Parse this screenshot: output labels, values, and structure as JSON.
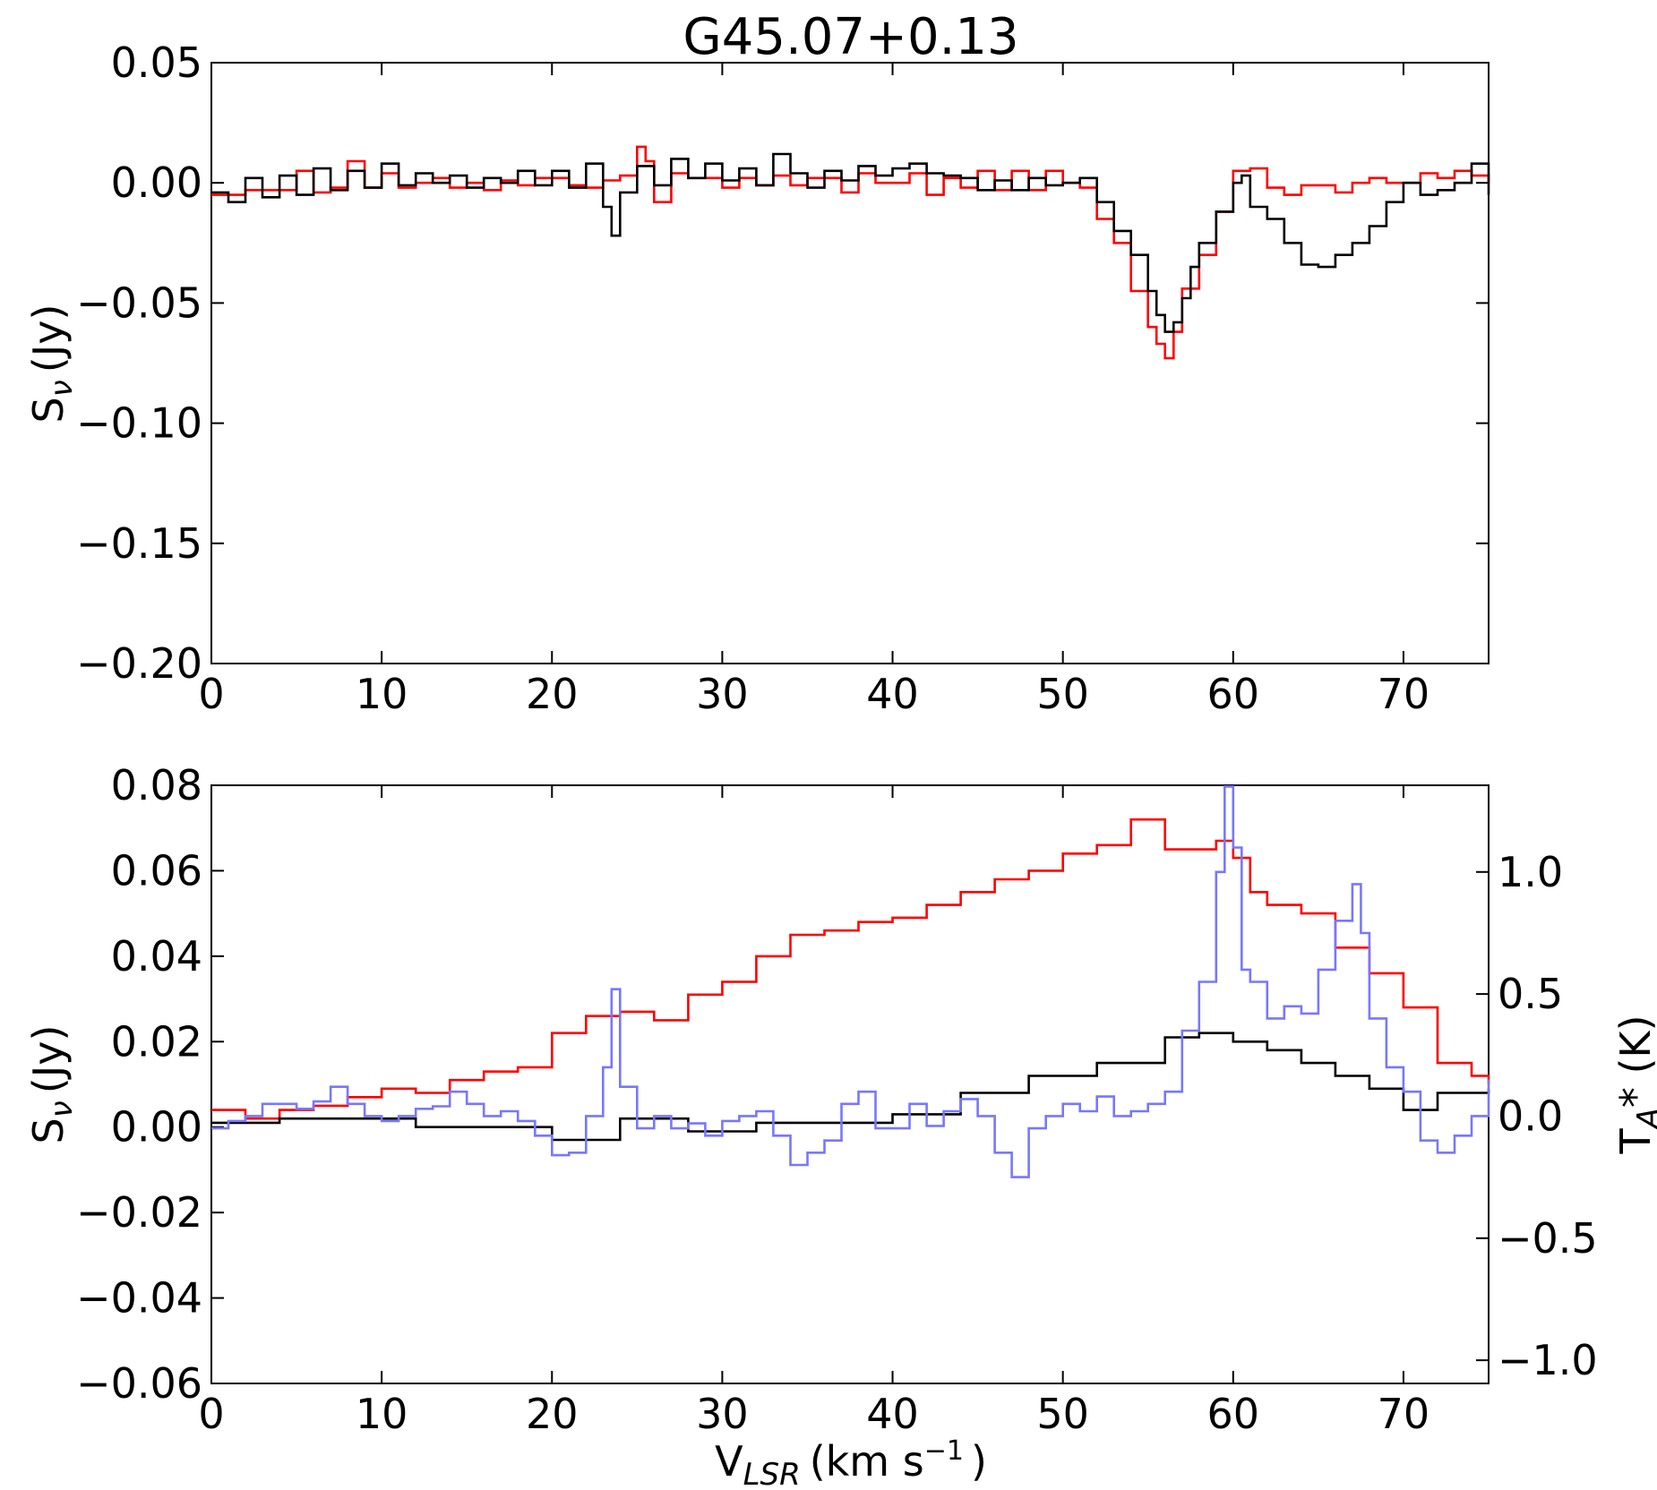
{
  "figure_title": "G45.07+0.13",
  "colors": {
    "red": "#ff0000",
    "black": "#000000",
    "blue": "#7777ff"
  },
  "chart_data": [
    {
      "type": "line",
      "title": "G45.07+0.13",
      "xlabel": "",
      "ylabel": {
        "base": "S",
        "sub": "ν",
        "rest": "(Jy)"
      },
      "xlim": [
        0,
        75
      ],
      "ylim": [
        -0.2,
        0.05
      ],
      "xticks": [
        0,
        10,
        20,
        30,
        40,
        50,
        60,
        70
      ],
      "xtick_labels": [
        "0",
        "10",
        "20",
        "30",
        "40",
        "50",
        "60",
        "70"
      ],
      "yticks": [
        0.05,
        0.0,
        -0.05,
        -0.1,
        -0.15,
        -0.2
      ],
      "ytick_labels": [
        "0.05",
        "0.00",
        "−0.05",
        "−0.10",
        "−0.15",
        "−0.20"
      ],
      "grid": false,
      "series": [
        {
          "color": "#ff0000",
          "step": true,
          "x": [
            0,
            2,
            4,
            5,
            6,
            7,
            8,
            9,
            10,
            11,
            12,
            13,
            14,
            15,
            16,
            17,
            18,
            19,
            20,
            21,
            22,
            23,
            24,
            25,
            25.5,
            26,
            27,
            28,
            29,
            30,
            31,
            32,
            33,
            34,
            35,
            36,
            37,
            38,
            39,
            40,
            41,
            42,
            43,
            44,
            45,
            46,
            47,
            48,
            49,
            50,
            51,
            52,
            53,
            54,
            55,
            55.5,
            56,
            56.5,
            57,
            58,
            59,
            60,
            61,
            62,
            63,
            64,
            65,
            66,
            67,
            68,
            69,
            70,
            71,
            72,
            73,
            74,
            75
          ],
          "y": [
            -0.005,
            -0.003,
            -0.003,
            0.005,
            -0.004,
            -0.002,
            0.009,
            -0.002,
            0.004,
            -0.002,
            0.0,
            0.002,
            -0.002,
            0.0,
            -0.003,
            0.001,
            -0.001,
            0.002,
            0.002,
            -0.001,
            -0.002,
            0.001,
            0.003,
            0.015,
            0.009,
            -0.008,
            0.004,
            0.002,
            0.002,
            -0.002,
            0.002,
            -0.001,
            0.003,
            -0.001,
            0.002,
            0.002,
            -0.004,
            0.004,
            0.0,
            0.0,
            0.004,
            -0.005,
            0.002,
            -0.002,
            0.005,
            -0.003,
            0.005,
            -0.003,
            0.005,
            0.0,
            -0.002,
            -0.015,
            -0.025,
            -0.045,
            -0.06,
            -0.067,
            -0.073,
            -0.062,
            -0.044,
            -0.03,
            -0.012,
            0.005,
            0.006,
            -0.002,
            -0.005,
            -0.001,
            -0.001,
            -0.004,
            0.0,
            0.002,
            0.0,
            0.0,
            0.004,
            0.002,
            0.005,
            0.003,
            0.0
          ]
        },
        {
          "color": "#000000",
          "step": true,
          "x": [
            0,
            1,
            2,
            3,
            4,
            5,
            6,
            7,
            8,
            9,
            10,
            11,
            12,
            13,
            14,
            15,
            16,
            17,
            18,
            19,
            20,
            21,
            22,
            23,
            23.5,
            24,
            25,
            26,
            27,
            28,
            29,
            30,
            31,
            32,
            33,
            34,
            35,
            36,
            37,
            38,
            39,
            40,
            41,
            42,
            43,
            44,
            45,
            46,
            47,
            48,
            49,
            50,
            51,
            52,
            53,
            54,
            55,
            55.5,
            56,
            56.5,
            57,
            57.5,
            58,
            59,
            60,
            60.5,
            61,
            62,
            63,
            64,
            65,
            66,
            67,
            68,
            69,
            70,
            71,
            72,
            73,
            74,
            75
          ],
          "y": [
            -0.004,
            -0.008,
            0.002,
            -0.006,
            0.003,
            -0.005,
            0.006,
            -0.003,
            0.005,
            -0.002,
            0.008,
            -0.001,
            0.004,
            0.0,
            0.003,
            -0.002,
            0.002,
            0.0,
            0.005,
            -0.001,
            0.005,
            -0.002,
            0.008,
            -0.01,
            -0.022,
            -0.004,
            0.007,
            -0.001,
            0.01,
            0.002,
            0.008,
            0.001,
            0.006,
            -0.001,
            0.012,
            0.004,
            -0.002,
            0.005,
            0.001,
            0.007,
            0.003,
            0.006,
            0.008,
            0.004,
            0.003,
            0.002,
            -0.003,
            0.001,
            -0.003,
            0.002,
            -0.001,
            0.0,
            0.002,
            -0.008,
            -0.02,
            -0.03,
            -0.045,
            -0.055,
            -0.062,
            -0.058,
            -0.048,
            -0.035,
            -0.025,
            -0.012,
            0.0,
            0.003,
            -0.01,
            -0.015,
            -0.025,
            -0.034,
            -0.035,
            -0.03,
            -0.025,
            -0.018,
            -0.008,
            0.0,
            -0.005,
            -0.003,
            0.0,
            0.008,
            -0.005
          ]
        }
      ]
    },
    {
      "type": "line",
      "xlabel": {
        "base": "V",
        "sub": "LSR",
        "rest": "(km s",
        "sup": "−1",
        "close": ")"
      },
      "ylabel": {
        "base": "S",
        "sub": "ν",
        "rest": "(Jy)"
      },
      "ylabel_right": {
        "base": "T",
        "sub": "A",
        "rest": "* (K)"
      },
      "xlim": [
        0,
        75
      ],
      "ylim": [
        -0.06,
        0.08
      ],
      "ylim_right": [
        -1.095,
        1.355
      ],
      "xticks": [
        0,
        10,
        20,
        30,
        40,
        50,
        60,
        70
      ],
      "xtick_labels": [
        "0",
        "10",
        "20",
        "30",
        "40",
        "50",
        "60",
        "70"
      ],
      "yticks": [
        0.08,
        0.06,
        0.04,
        0.02,
        0.0,
        -0.02,
        -0.04,
        -0.06
      ],
      "ytick_labels": [
        "0.08",
        "0.06",
        "0.04",
        "0.02",
        "0.00",
        "−0.02",
        "−0.04",
        "−0.06"
      ],
      "yticks_right": [
        1.0,
        0.5,
        0.0,
        -0.5,
        -1.0
      ],
      "ytick_labels_right": [
        "1.0",
        "0.5",
        "0.0",
        "−0.5",
        "−1.0"
      ],
      "grid": false,
      "series": [
        {
          "axis": "left",
          "color": "#ff0000",
          "step": true,
          "x": [
            0,
            2,
            4,
            6,
            8,
            10,
            12,
            14,
            16,
            18,
            20,
            22,
            24,
            26,
            28,
            30,
            32,
            34,
            36,
            38,
            40,
            42,
            44,
            46,
            48,
            50,
            52,
            54,
            56,
            58,
            59,
            60,
            61,
            62,
            64,
            66,
            68,
            70,
            72,
            74,
            75
          ],
          "y": [
            0.004,
            0.002,
            0.004,
            0.005,
            0.007,
            0.009,
            0.008,
            0.011,
            0.013,
            0.014,
            0.022,
            0.026,
            0.027,
            0.025,
            0.031,
            0.034,
            0.04,
            0.045,
            0.046,
            0.048,
            0.049,
            0.052,
            0.055,
            0.058,
            0.06,
            0.064,
            0.066,
            0.072,
            0.065,
            0.065,
            0.067,
            0.063,
            0.055,
            0.052,
            0.05,
            0.042,
            0.036,
            0.028,
            0.015,
            0.012,
            0.01
          ]
        },
        {
          "axis": "left",
          "color": "#000000",
          "step": true,
          "x": [
            0,
            4,
            8,
            12,
            16,
            20,
            24,
            28,
            32,
            36,
            40,
            44,
            48,
            52,
            56,
            58,
            60,
            62,
            64,
            66,
            68,
            70,
            72,
            75
          ],
          "y": [
            0.001,
            0.002,
            0.002,
            0.0,
            0.0,
            -0.003,
            0.002,
            -0.001,
            0.001,
            0.001,
            0.003,
            0.008,
            0.012,
            0.015,
            0.021,
            0.022,
            0.02,
            0.018,
            0.015,
            0.012,
            0.009,
            0.004,
            0.008,
            0.009
          ]
        },
        {
          "axis": "right",
          "color": "#7777ff",
          "step": true,
          "x": [
            0,
            1,
            2,
            3,
            4,
            5,
            6,
            7,
            8,
            9,
            10,
            11,
            12,
            13,
            14,
            15,
            16,
            17,
            18,
            19,
            20,
            21,
            22,
            23,
            23.5,
            24,
            25,
            26,
            27,
            28,
            29,
            30,
            31,
            32,
            33,
            34,
            35,
            36,
            37,
            38,
            39,
            40,
            41,
            42,
            43,
            44,
            45,
            46,
            47,
            48,
            49,
            50,
            51,
            52,
            53,
            54,
            55,
            56,
            57,
            58,
            59,
            59.5,
            60,
            60.5,
            61,
            62,
            63,
            64,
            65,
            66,
            67,
            67.5,
            68,
            69,
            70,
            71,
            72,
            73,
            74,
            75
          ],
          "y": [
            -0.05,
            -0.02,
            0.0,
            0.05,
            0.05,
            0.03,
            0.06,
            0.12,
            0.05,
            0.0,
            -0.02,
            0.0,
            0.03,
            0.04,
            0.1,
            0.05,
            0.0,
            0.02,
            -0.02,
            -0.08,
            -0.16,
            -0.15,
            0.0,
            0.2,
            0.52,
            0.12,
            -0.05,
            0.0,
            -0.05,
            -0.03,
            -0.08,
            -0.02,
            0.0,
            0.02,
            -0.08,
            -0.2,
            -0.15,
            -0.1,
            0.05,
            0.1,
            -0.05,
            -0.05,
            0.05,
            -0.04,
            0.02,
            0.07,
            0.0,
            -0.15,
            -0.25,
            -0.05,
            0.0,
            0.05,
            0.02,
            0.08,
            0.0,
            0.02,
            0.05,
            0.1,
            0.35,
            0.55,
            1.0,
            1.35,
            1.1,
            0.6,
            0.55,
            0.4,
            0.45,
            0.42,
            0.6,
            0.8,
            0.95,
            0.75,
            0.4,
            0.2,
            0.1,
            -0.1,
            -0.15,
            -0.08,
            0.0,
            0.15
          ]
        }
      ]
    }
  ]
}
